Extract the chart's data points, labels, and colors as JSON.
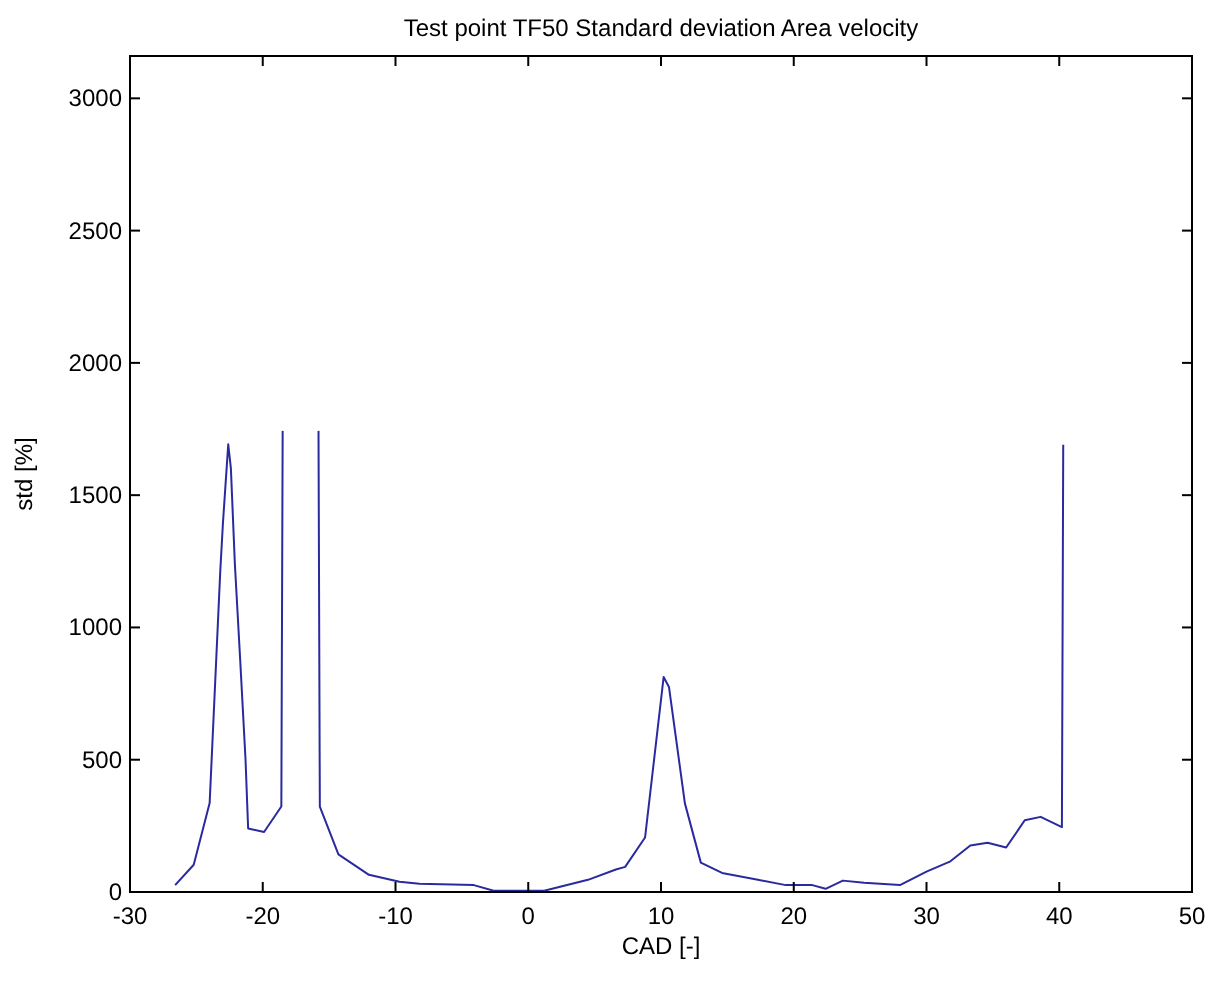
{
  "chart_data": {
    "type": "line",
    "title": "Test point TF50 Standard deviation Area velocity",
    "xlabel": "CAD [-]",
    "ylabel": "std [%]",
    "xlim": [
      -30,
      50
    ],
    "xticks": [
      -30,
      -20,
      -10,
      0,
      10,
      20,
      30,
      40,
      50
    ],
    "ylim": [
      0,
      3160
    ],
    "yticks": [
      0,
      500,
      1000,
      1500,
      2000,
      2500,
      3000
    ],
    "series": [
      {
        "color": "#2a2aa0",
        "x": [
          -26.6,
          -25.2,
          -24,
          -23.2,
          -23,
          -22.6,
          -22.4,
          -22.1,
          -21.7,
          -21.3,
          -21.1,
          -19.9,
          -18.6,
          -18.5,
          -18.4,
          -15.9,
          -15.8,
          -15.7,
          -14.3,
          -12,
          -9.7,
          -8.2,
          -4.1,
          -2.6,
          0,
          1.2,
          4.5,
          6.6,
          7.3,
          8.8,
          10.2,
          10.6,
          11.8,
          13,
          14.6,
          17.3,
          19.4,
          21.4,
          22.4,
          23.7,
          25.3,
          28,
          30,
          31.8,
          33.3,
          34.6,
          36,
          37.4,
          38.6,
          40.2,
          40.3
        ],
        "values": [
          26,
          103,
          336,
          1213,
          1394,
          1692,
          1601,
          1240,
          878,
          503,
          240,
          227,
          323,
          1743,
          null,
          null,
          1743,
          323,
          142,
          65,
          39,
          31,
          26,
          5,
          5,
          5,
          46,
          85,
          95,
          206,
          813,
          775,
          335,
          111,
          72,
          46,
          26,
          26,
          12,
          43,
          35,
          26,
          77,
          116,
          176,
          186,
          168,
          271,
          284,
          245,
          1691
        ]
      }
    ]
  }
}
